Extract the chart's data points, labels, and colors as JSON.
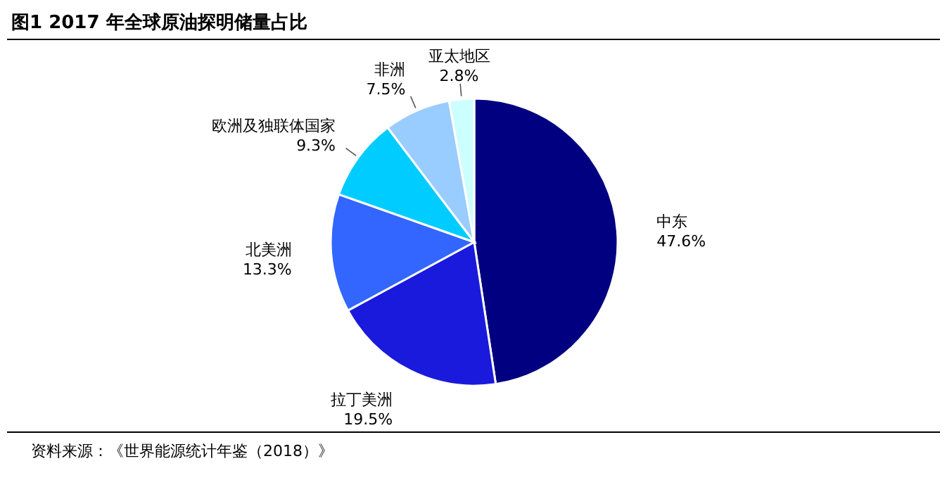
{
  "chart_data": {
    "type": "pie",
    "title": "图1  2017 年全球原油探明储量占比",
    "categories": [
      "中东",
      "拉丁美洲",
      "北美洲",
      "欧洲及独联体国家",
      "非洲",
      "亚太地区"
    ],
    "values": [
      47.6,
      19.5,
      13.3,
      9.3,
      7.5,
      2.8
    ],
    "colors": [
      "#000080",
      "#1a1adc",
      "#3366ff",
      "#00ccff",
      "#99ccff",
      "#ccffff"
    ],
    "value_labels": [
      "47.6%",
      "19.5%",
      "13.3%",
      "9.3%",
      "7.5%",
      "2.8%"
    ],
    "annotations": [
      "资料来源：《世界能源统计年鉴（2018）》"
    ]
  }
}
